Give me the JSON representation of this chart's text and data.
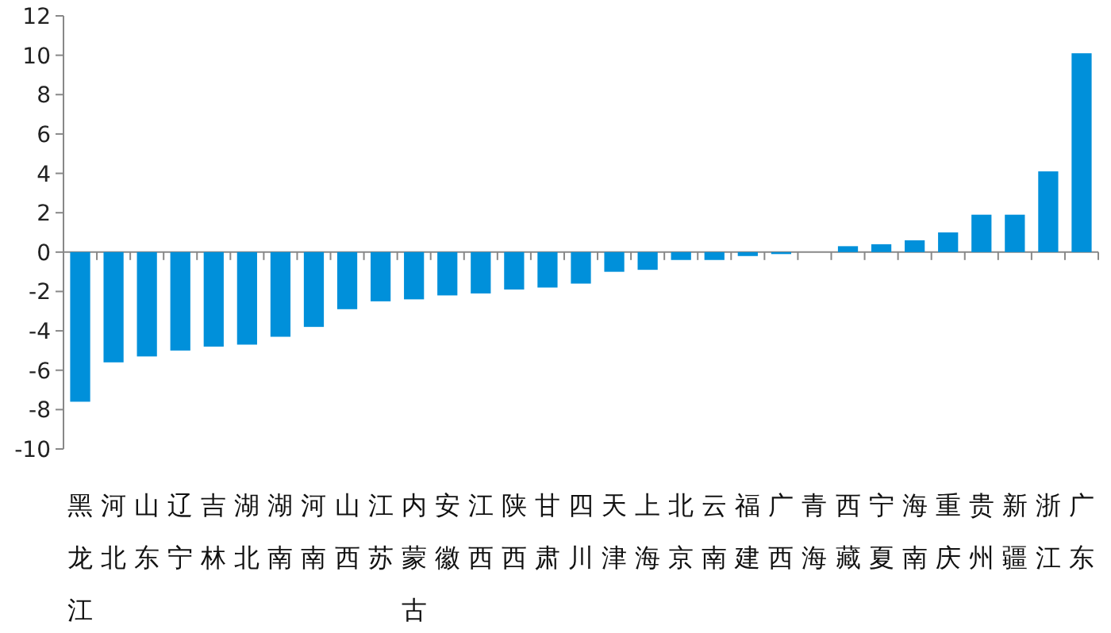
{
  "chart_data": {
    "type": "bar",
    "categories": [
      "黑龙江",
      "河北",
      "山东",
      "辽宁",
      "吉林",
      "湖北",
      "湖南",
      "河南",
      "山西",
      "江苏",
      "内蒙古",
      "安徽",
      "江西",
      "陕西",
      "甘肃",
      "四川",
      "天津",
      "上海",
      "北京",
      "云南",
      "福建",
      "广西",
      "青海",
      "西藏",
      "宁夏",
      "海南",
      "重庆",
      "贵州",
      "新疆",
      "浙江",
      "广东"
    ],
    "values": [
      -7.6,
      -5.6,
      -5.3,
      -5.0,
      -4.8,
      -4.7,
      -4.3,
      -3.8,
      -2.9,
      -2.5,
      -2.4,
      -2.2,
      -2.1,
      -1.9,
      -1.8,
      -1.6,
      -1.0,
      -0.9,
      -0.4,
      -0.4,
      -0.2,
      -0.1,
      0,
      0.3,
      0.4,
      0.6,
      1.0,
      1.9,
      1.9,
      4.1,
      10.1
    ],
    "color": "#0090da",
    "ylim": [
      -10,
      12
    ],
    "yticks": [
      -10,
      -8,
      -6,
      -4,
      -2,
      0,
      2,
      4,
      6,
      8,
      10,
      12
    ]
  }
}
